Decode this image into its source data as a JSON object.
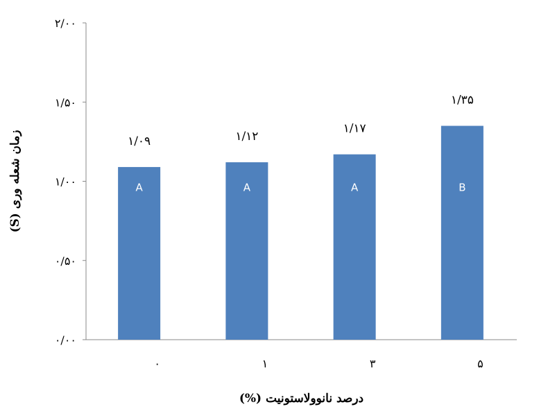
{
  "chart_data": {
    "type": "bar",
    "categories": [
      "۰",
      "۱",
      "۳",
      "۵"
    ],
    "values": [
      1.09,
      1.12,
      1.17,
      1.35
    ],
    "data_labels": [
      "۱/۰۹",
      "۱/۱۲",
      "۱/۱۷",
      "۱/۳۵"
    ],
    "group_labels": [
      "A",
      "A",
      "A",
      "B"
    ],
    "ylim": [
      0,
      2
    ],
    "yticks": [
      0,
      0.5,
      1,
      1.5,
      2
    ],
    "ytick_labels": [
      "۰/۰۰",
      "۰/۵۰",
      "۱/۰۰",
      "۱/۵۰",
      "۲/۰۰"
    ],
    "xlabel": "درصد نانوولاستونیت (%)",
    "ylabel": "زمان شعله وری (S)",
    "grid": false,
    "bar_color": "#4f81bd"
  }
}
